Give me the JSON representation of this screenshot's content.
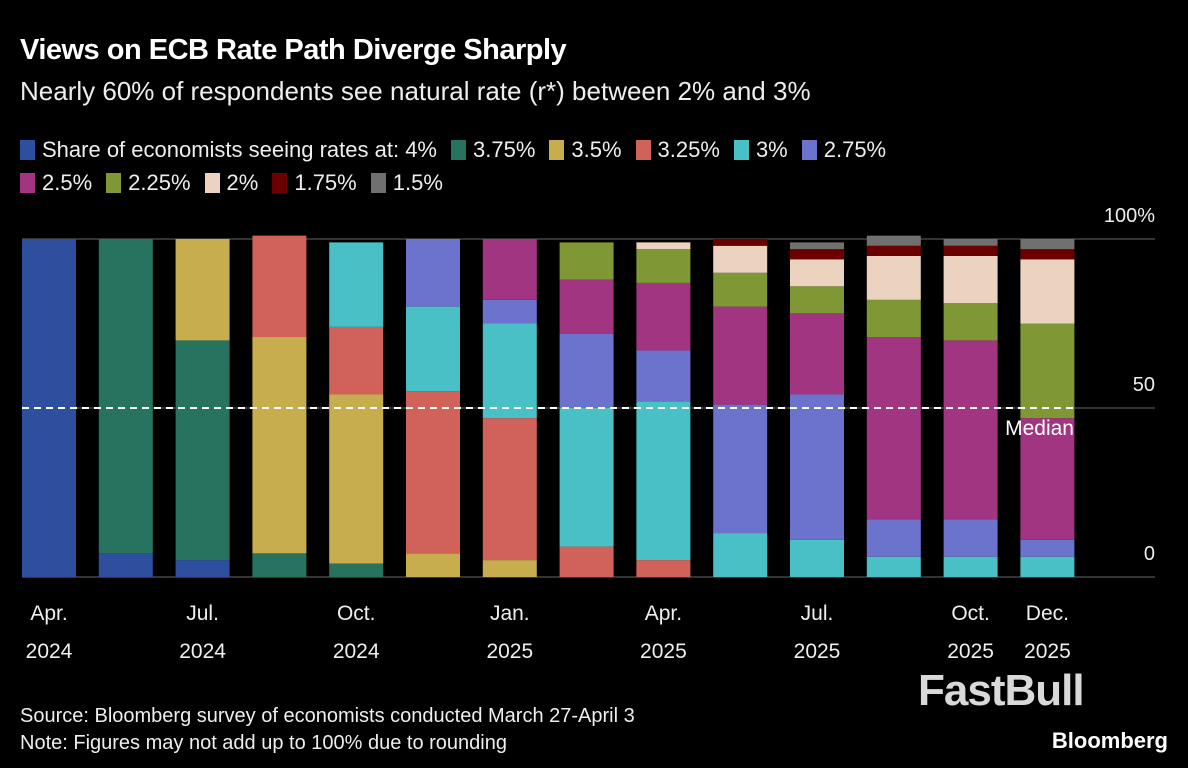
{
  "title": "Views on ECB Rate Path Diverge Sharply",
  "subtitle": "Nearly 60% of respondents see natural rate (r*) between 2% and 3%",
  "legend_prefix": "Share of economists seeing rates at: ",
  "source": "Source: Bloomberg survey of economists conducted March 27-April 3",
  "note": "Note: Figures may not add up to 100% due to rounding",
  "brand": "Bloomberg",
  "watermark": "FastBull",
  "chart_data": {
    "type": "bar",
    "stacked": true,
    "ylim": [
      0,
      100
    ],
    "y_ticks": [
      {
        "value": 0,
        "label": "0"
      },
      {
        "value": 50,
        "label": "50"
      },
      {
        "value": 100,
        "label": "100%"
      }
    ],
    "x_ticks": [
      {
        "index": 0,
        "line1": "Apr.",
        "line2": "2024"
      },
      {
        "index": 2,
        "line1": "Jul.",
        "line2": "2024"
      },
      {
        "index": 4,
        "line1": "Oct.",
        "line2": "2024"
      },
      {
        "index": 6,
        "line1": "Jan.",
        "line2": "2025"
      },
      {
        "index": 8,
        "line1": "Apr.",
        "line2": "2025"
      },
      {
        "index": 10,
        "line1": "Jul.",
        "line2": "2025"
      },
      {
        "index": 12,
        "line1": "Oct.",
        "line2": "2025"
      },
      {
        "index": 13,
        "line1": "Dec.",
        "line2": "2025"
      }
    ],
    "median_line": {
      "value": 50,
      "label": "Median"
    },
    "legend_placement": "top",
    "series": [
      {
        "name": "4%",
        "color": "#2e4f9e",
        "values": [
          100,
          7,
          5,
          0,
          0,
          0,
          0,
          0,
          0,
          0,
          0,
          0,
          0,
          0
        ]
      },
      {
        "name": "3.75%",
        "color": "#27735f",
        "values": [
          0,
          93,
          65,
          7,
          4,
          0,
          0,
          0,
          0,
          0,
          0,
          0,
          0,
          0
        ]
      },
      {
        "name": "3.5%",
        "color": "#c8ad4e",
        "values": [
          0,
          0,
          30,
          64,
          50,
          7,
          5,
          0,
          0,
          0,
          0,
          0,
          0,
          0
        ]
      },
      {
        "name": "3.25%",
        "color": "#d0625a",
        "values": [
          0,
          0,
          0,
          30,
          20,
          48,
          42,
          9,
          5,
          0,
          0,
          0,
          0,
          0
        ]
      },
      {
        "name": "3%",
        "color": "#49bfc6",
        "values": [
          0,
          0,
          0,
          0,
          25,
          25,
          28,
          41,
          47,
          13,
          11,
          6,
          6,
          6
        ]
      },
      {
        "name": "2.75%",
        "color": "#6c73cd",
        "values": [
          0,
          0,
          0,
          0,
          0,
          20,
          7,
          22,
          15,
          38,
          43,
          11,
          11,
          5
        ]
      },
      {
        "name": "2.5%",
        "color": "#a13582",
        "values": [
          0,
          0,
          0,
          0,
          0,
          0,
          18,
          16,
          20,
          29,
          24,
          54,
          53,
          36
        ]
      },
      {
        "name": "2.25%",
        "color": "#7f9734",
        "values": [
          0,
          0,
          0,
          0,
          0,
          0,
          0,
          11,
          10,
          10,
          8,
          11,
          11,
          28
        ]
      },
      {
        "name": "2%",
        "color": "#ebd3c0",
        "values": [
          0,
          0,
          0,
          0,
          0,
          0,
          0,
          0,
          2,
          8,
          8,
          13,
          14,
          19
        ]
      },
      {
        "name": "1.75%",
        "color": "#6b0000",
        "values": [
          0,
          0,
          0,
          0,
          0,
          0,
          0,
          0,
          0,
          2,
          3,
          3,
          3,
          3
        ]
      },
      {
        "name": "1.5%",
        "color": "#707070",
        "values": [
          0,
          0,
          0,
          0,
          0,
          0,
          0,
          0,
          0,
          0,
          2,
          3,
          2,
          3
        ]
      }
    ]
  }
}
